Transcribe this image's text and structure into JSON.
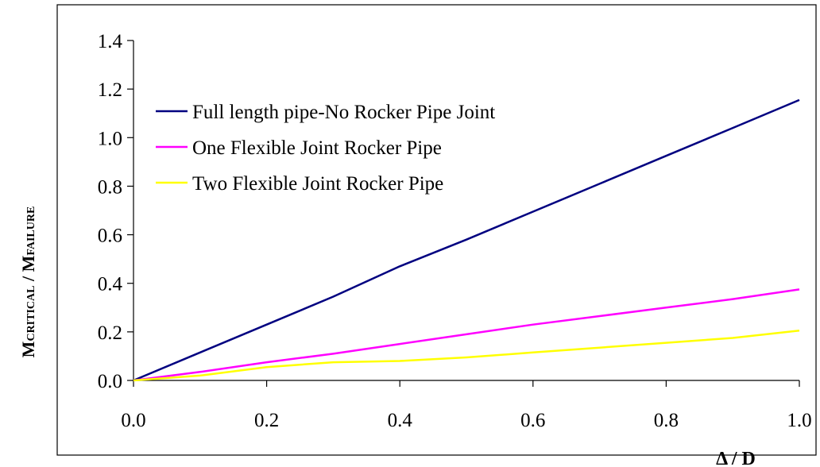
{
  "chart_data": {
    "type": "line",
    "xlabel": "Δ / D",
    "ylabel": {
      "m1": "M",
      "sub1": "CRITICAL",
      "sep": " / ",
      "m2": "M",
      "sub2": "FAILURE"
    },
    "xlim": [
      0,
      1
    ],
    "ylim": [
      0,
      1.4
    ],
    "x_ticks": [
      0,
      0.2,
      0.4,
      0.6,
      0.8,
      1.0
    ],
    "x_tick_labels": [
      "0.0",
      "0.2",
      "0.4",
      "0.6",
      "0.8",
      "1.0"
    ],
    "y_ticks": [
      0,
      0.2,
      0.4,
      0.6,
      0.8,
      1.0,
      1.2,
      1.4
    ],
    "y_tick_labels": [
      "0.0",
      "0.2",
      "0.4",
      "0.6",
      "0.8",
      "1.0",
      "1.2",
      "1.4"
    ],
    "grid": false,
    "legend_position": "upper-left inside plot",
    "series": [
      {
        "name": "Full length pipe-No Rocker Pipe Joint",
        "color": "#000080",
        "x": [
          0,
          0.1,
          0.2,
          0.3,
          0.4,
          0.5,
          0.6,
          0.7,
          0.8,
          0.9,
          1.0
        ],
        "y": [
          0,
          0.115,
          0.23,
          0.345,
          0.47,
          0.58,
          0.695,
          0.81,
          0.925,
          1.04,
          1.155
        ]
      },
      {
        "name": "One Flexible Joint Rocker Pipe",
        "color": "#ff00ff",
        "x": [
          0,
          0.1,
          0.2,
          0.3,
          0.4,
          0.5,
          0.6,
          0.7,
          0.8,
          0.9,
          1.0
        ],
        "y": [
          0,
          0.035,
          0.075,
          0.11,
          0.15,
          0.19,
          0.23,
          0.265,
          0.3,
          0.335,
          0.375
        ]
      },
      {
        "name": "Two Flexible Joint Rocker Pipe",
        "color": "#ffff00",
        "x": [
          0,
          0.1,
          0.2,
          0.3,
          0.4,
          0.5,
          0.6,
          0.7,
          0.8,
          0.9,
          1.0
        ],
        "y": [
          0,
          0.02,
          0.055,
          0.075,
          0.08,
          0.095,
          0.115,
          0.135,
          0.155,
          0.175,
          0.205
        ]
      }
    ]
  }
}
